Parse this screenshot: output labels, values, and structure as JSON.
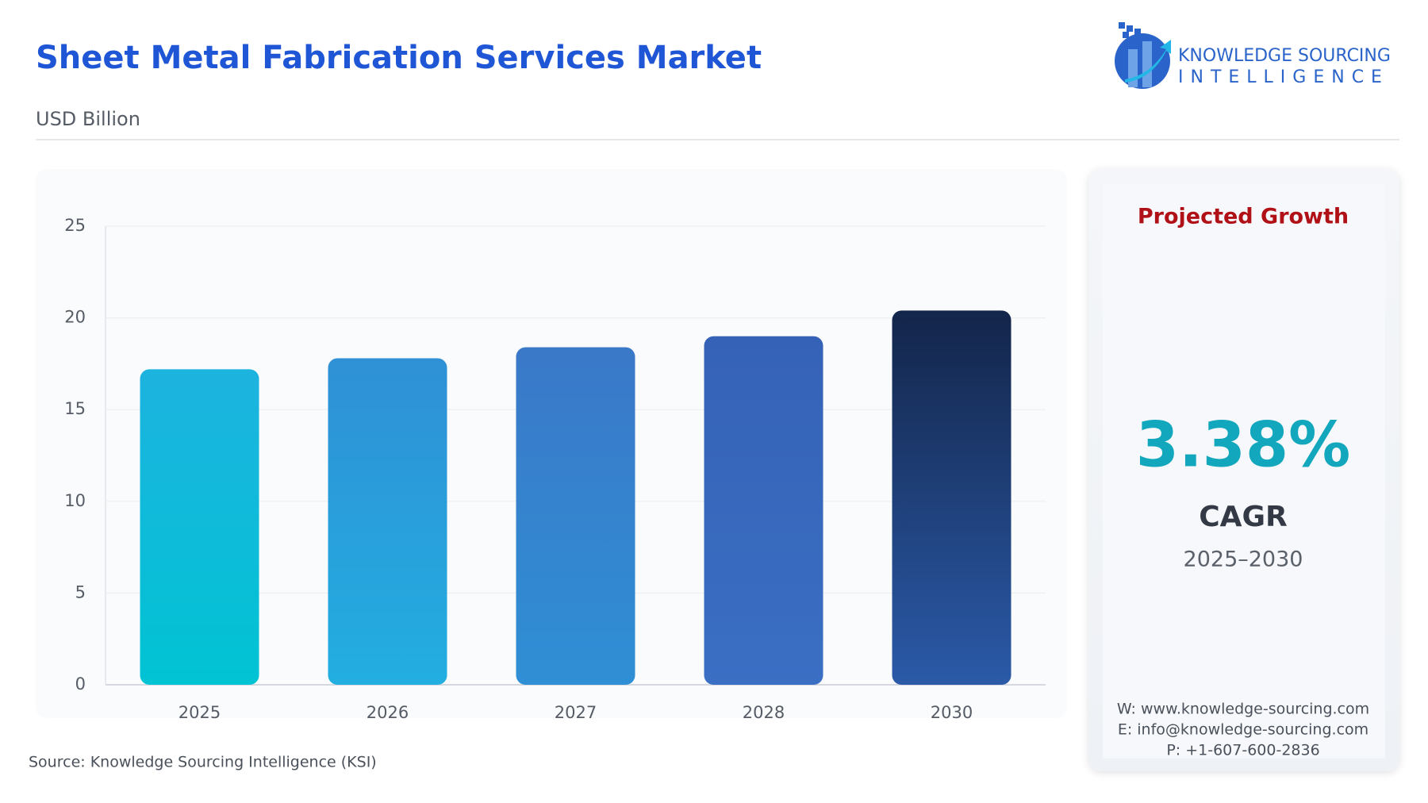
{
  "header": {
    "title": "Sheet Metal Fabrication Services Market",
    "subtitle": "USD Billion"
  },
  "logo": {
    "line1": "KNOWLEDGE SOURCING",
    "line2": "INTELLIGENCE"
  },
  "chart_data": {
    "type": "bar",
    "categories": [
      "2025",
      "2026",
      "2027",
      "2028",
      "2030"
    ],
    "values": [
      17.2,
      17.8,
      18.4,
      19.0,
      20.4
    ],
    "colors": [
      [
        "#1db3df",
        "#00c3d3"
      ],
      [
        "#2f90d6",
        "#22aee0"
      ],
      [
        "#3a78c8",
        "#2f8fd5"
      ],
      [
        "#3562b6",
        "#3a6fc4"
      ],
      [
        "#13254a",
        "#2b5aa8"
      ]
    ],
    "ylim": [
      0,
      25
    ],
    "yticks": [
      0,
      5,
      10,
      15,
      20,
      25
    ],
    "grid": true
  },
  "growth_panel": {
    "heading": "Projected Growth",
    "value": "3.38%",
    "label": "CAGR",
    "period": "2025–2030",
    "website": "W: www.knowledge-sourcing.com",
    "email": "E: info@knowledge-sourcing.com",
    "phone": "P: +1-607-600-2836"
  },
  "source": "Source: Knowledge Sourcing Intelligence (KSI)"
}
